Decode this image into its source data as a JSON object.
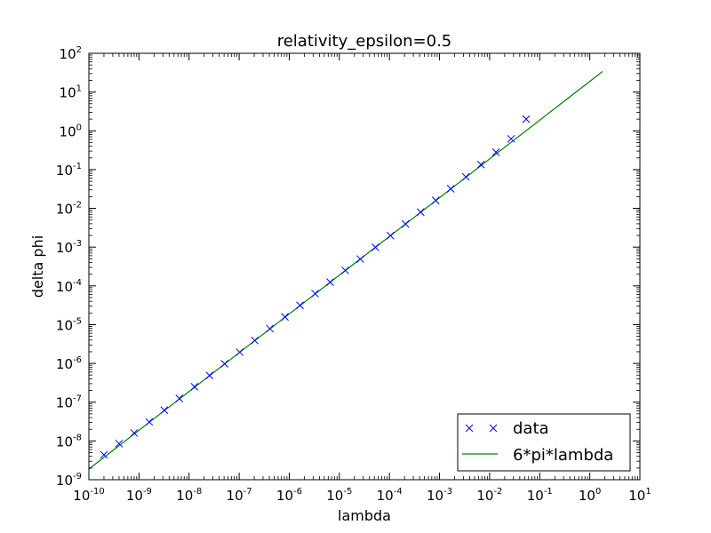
{
  "chart_data": {
    "type": "scatter",
    "title": "relativity_epsilon=0.5",
    "xlabel": "lambda",
    "ylabel": "delta phi",
    "xscale": "log",
    "yscale": "log",
    "xlim": [
      1e-10,
      10
    ],
    "ylim": [
      1e-09,
      100
    ],
    "x_ticks": [
      {
        "base": "10",
        "exp": "-10"
      },
      {
        "base": "10",
        "exp": "-9"
      },
      {
        "base": "10",
        "exp": "-8"
      },
      {
        "base": "10",
        "exp": "-7"
      },
      {
        "base": "10",
        "exp": "-6"
      },
      {
        "base": "10",
        "exp": "-5"
      },
      {
        "base": "10",
        "exp": "-4"
      },
      {
        "base": "10",
        "exp": "-3"
      },
      {
        "base": "10",
        "exp": "-2"
      },
      {
        "base": "10",
        "exp": "-1"
      },
      {
        "base": "10",
        "exp": "0"
      },
      {
        "base": "10",
        "exp": "1"
      }
    ],
    "y_ticks": [
      {
        "base": "10",
        "exp": "-9"
      },
      {
        "base": "10",
        "exp": "-8"
      },
      {
        "base": "10",
        "exp": "-7"
      },
      {
        "base": "10",
        "exp": "-6"
      },
      {
        "base": "10",
        "exp": "-5"
      },
      {
        "base": "10",
        "exp": "-4"
      },
      {
        "base": "10",
        "exp": "-3"
      },
      {
        "base": "10",
        "exp": "-2"
      },
      {
        "base": "10",
        "exp": "-1"
      },
      {
        "base": "10",
        "exp": "0"
      },
      {
        "base": "10",
        "exp": "1"
      },
      {
        "base": "10",
        "exp": "2"
      }
    ],
    "legend_position": "lower-right",
    "grid": false,
    "series": [
      {
        "name": "data",
        "kind": "scatter",
        "marker": "x",
        "color": "#0000ff",
        "x": [
          2e-10,
          4e-10,
          8e-10,
          1.6e-09,
          3.2e-09,
          6.4e-09,
          1.28e-08,
          2.56e-08,
          5.12e-08,
          1.024e-07,
          2.048e-07,
          4.096e-07,
          8.192e-07,
          1.638e-06,
          3.277e-06,
          6.554e-06,
          1.311e-05,
          2.621e-05,
          5.243e-05,
          0.0001049,
          0.0002097,
          0.0004194,
          0.0008389,
          0.001678,
          0.003355,
          0.006711,
          0.01342,
          0.02684,
          0.05369
        ],
        "y": [
          4.4e-09,
          8.5e-09,
          1.6e-08,
          3.1e-08,
          6.2e-08,
          1.25e-07,
          2.5e-07,
          4.9e-07,
          9.8e-07,
          1.95e-06,
          3.9e-06,
          7.9e-06,
          1.58e-05,
          3.15e-05,
          6.3e-05,
          0.000125,
          0.00025,
          0.00049,
          0.00099,
          0.00198,
          0.00395,
          0.008,
          0.016,
          0.032,
          0.065,
          0.135,
          0.28,
          0.62,
          2.0
        ]
      },
      {
        "name": "6*pi*lambda",
        "kind": "line",
        "color": "#008000",
        "x": [
          1e-10,
          1.8
        ],
        "y": [
          1.885e-09,
          33.9
        ]
      }
    ]
  }
}
